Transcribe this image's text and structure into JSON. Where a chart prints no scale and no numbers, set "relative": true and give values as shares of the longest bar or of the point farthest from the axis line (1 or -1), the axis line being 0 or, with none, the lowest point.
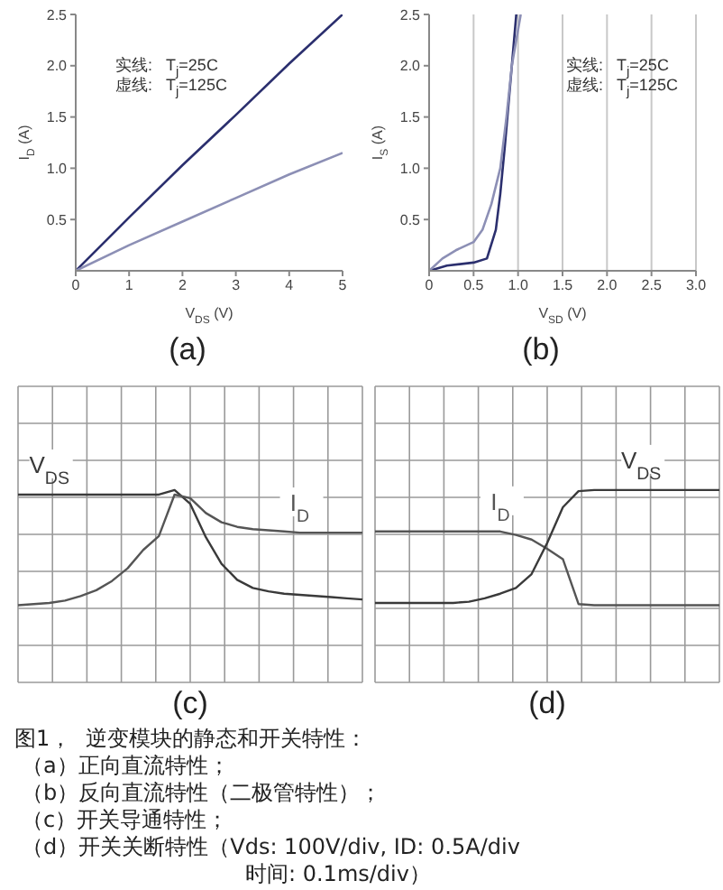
{
  "chart_data": [
    {
      "type": "line",
      "title": "(a)",
      "xlabel": "V$_{DS}$ (V)",
      "ylabel": "I$_{D}$ (A)",
      "xlim": [
        0,
        5
      ],
      "ylim": [
        0,
        2.5
      ],
      "xticks": [
        0,
        1,
        2,
        3,
        4,
        5
      ],
      "yticks": [
        {
          "value": 0.5,
          "label": "0.5"
        },
        {
          "value": 1,
          "label": "1.0"
        },
        {
          "value": 1.5,
          "label": "1.5"
        },
        {
          "value": 2,
          "label": "2.0"
        },
        {
          "value": 2.5,
          "label": "2.5"
        }
      ],
      "annotations": [
        "实线:   T$_{j}$=25C",
        "虚线:   T$_{j}$=125C"
      ],
      "series": [
        {
          "color": "#2b2f6e",
          "x": [
            0,
            1,
            2,
            3,
            4,
            5
          ],
          "values": [
            0,
            0.52,
            1.03,
            1.52,
            2.02,
            2.5
          ]
        },
        {
          "color": "#8c8fb5",
          "x": [
            0,
            1,
            2,
            3,
            4,
            5
          ],
          "values": [
            0,
            0.25,
            0.48,
            0.71,
            0.94,
            1.15
          ]
        }
      ]
    },
    {
      "type": "line",
      "title": "(b)",
      "xlabel": "V$_{SD}$ (V)",
      "ylabel": "I$_{S}$ (A)",
      "xlim": [
        0,
        3
      ],
      "ylim": [
        0,
        2.5
      ],
      "xticks": [
        0,
        {
          "value": 0.5,
          "label": "0.5"
        },
        {
          "value": 1,
          "label": "1.0"
        },
        {
          "value": 1.5,
          "label": "1.5"
        },
        {
          "value": 2,
          "label": "2.0"
        },
        {
          "value": 2.5,
          "label": "2.5"
        },
        {
          "value": 3,
          "label": "3.0"
        }
      ],
      "yticks": [
        {
          "value": 0.5,
          "label": "0.5"
        },
        {
          "value": 1,
          "label": "1.0"
        },
        {
          "value": 1.5,
          "label": "1.5"
        },
        {
          "value": 2,
          "label": "2.0"
        },
        {
          "value": 2.5,
          "label": "2.5"
        }
      ],
      "grid": "x",
      "annotations": [
        "实线:   T$_{j}$=25C",
        "虚线:   T$_{j}$=125C"
      ],
      "series": [
        {
          "color": "#2b2f6e",
          "x": [
            0,
            0.2,
            0.5,
            0.65,
            0.75,
            0.8,
            0.85,
            0.9,
            0.95,
            0.98
          ],
          "values": [
            0,
            0.05,
            0.08,
            0.12,
            0.4,
            0.75,
            1.2,
            1.7,
            2.2,
            2.5
          ]
        },
        {
          "color": "#8c8fb5",
          "x": [
            0,
            0.15,
            0.3,
            0.5,
            0.6,
            0.7,
            0.8,
            0.87,
            0.93,
            1.03
          ],
          "values": [
            0,
            0.12,
            0.2,
            0.28,
            0.4,
            0.65,
            1.0,
            1.5,
            2.0,
            2.5
          ]
        }
      ]
    },
    {
      "type": "line",
      "title": "(c)",
      "relative": true,
      "grid": true,
      "categories": [
        null,
        null,
        null,
        null,
        null,
        null,
        null,
        null,
        null,
        null,
        null,
        null,
        null,
        null,
        null,
        null,
        null,
        null,
        null,
        null,
        null,
        null,
        null
      ],
      "series": [
        {
          "name": "V$_{DS}$",
          "color": "#3a3a3a",
          "values": [
            0.96,
            0.96,
            0.96,
            0.96,
            0.96,
            0.96,
            0.96,
            0.96,
            0.96,
            0.96,
            1,
            0.88,
            0.59,
            0.36,
            0.22,
            0.15,
            0.12,
            0.1,
            0.09,
            0.08,
            0.07,
            0.06,
            0.05
          ]
        },
        {
          "name": "I$_{D}$",
          "color": "#555555",
          "values": [
            0,
            0.01,
            0.02,
            0.04,
            0.08,
            0.13,
            0.21,
            0.32,
            0.48,
            0.6,
            0.96,
            0.93,
            0.8,
            0.72,
            0.68,
            0.66,
            0.65,
            0.64,
            0.63,
            0.63,
            0.63,
            0.63,
            0.63
          ]
        }
      ]
    },
    {
      "type": "line",
      "title": "(d)",
      "relative": true,
      "grid": true,
      "categories": [
        null,
        null,
        null,
        null,
        null,
        null,
        null,
        null,
        null,
        null,
        null,
        null,
        null,
        null,
        null,
        null,
        null,
        null,
        null,
        null,
        null,
        null,
        null
      ],
      "annotations": [
        "图1，  逆变模块的静态和开关特性：",
        "（a）正向直流特性；",
        "（b）反向直流特性（二极管特性）；",
        "（c）开关导通特性；",
        "（d）开关关断特性（Vds: 100V/div, ID: 0.5A/div",
        "时间: 0.1ms/div）"
      ],
      "series": [
        {
          "name": "I$_{D}$",
          "color": "#555555",
          "values": [
            0.64,
            0.64,
            0.64,
            0.64,
            0.64,
            0.64,
            0.64,
            0.64,
            0.64,
            0.61,
            0.57,
            0.49,
            0.4,
            0.01,
            0,
            0,
            0,
            0,
            0,
            0,
            0,
            0,
            0
          ]
        },
        {
          "name": "V$_{DS}$",
          "color": "#3a3a3a",
          "values": [
            0.02,
            0.02,
            0.02,
            0.02,
            0.02,
            0.02,
            0.03,
            0.06,
            0.1,
            0.15,
            0.27,
            0.54,
            0.85,
            0.99,
            1,
            1,
            1,
            1,
            1,
            1,
            1,
            1,
            1
          ]
        }
      ]
    }
  ]
}
